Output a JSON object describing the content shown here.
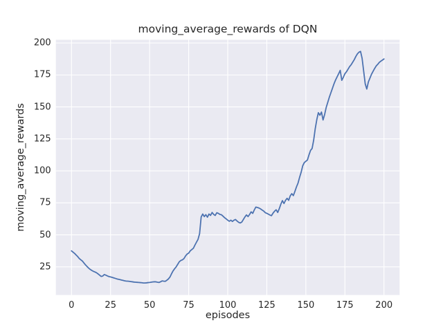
{
  "figure": {
    "title": "moving_average_rewards of DQN",
    "xlabel": "episodes",
    "ylabel": "moving_average_rewards"
  },
  "chart_data": {
    "type": "line",
    "title": "moving_average_rewards of DQN",
    "xlabel": "episodes",
    "ylabel": "moving_average_rewards",
    "xlim": [
      -10,
      210
    ],
    "ylim": [
      3,
      202.5
    ],
    "xticks": [
      0,
      25,
      50,
      75,
      100,
      125,
      150,
      175,
      200
    ],
    "yticks": [
      25,
      50,
      75,
      100,
      125,
      150,
      175,
      200
    ],
    "grid": true,
    "legend": null,
    "style": {
      "fig_bg": "#ffffff",
      "axes_bg": "#eaeaf2",
      "grid_color": "#ffffff",
      "text_color": "#262626",
      "line_color": "#4c72b0",
      "line_width": 1.8
    },
    "series": [
      {
        "name": "moving_average_rewards",
        "color": "#4c72b0",
        "x": [
          0,
          1,
          2,
          3,
          4,
          5,
          6,
          7,
          8,
          9,
          10,
          11,
          12,
          13,
          14,
          15,
          16,
          17,
          18,
          19,
          20,
          21,
          22,
          23,
          24,
          25,
          26,
          27,
          28,
          29,
          30,
          31,
          32,
          33,
          34,
          35,
          36,
          37,
          38,
          39,
          40,
          41,
          42,
          43,
          44,
          45,
          46,
          47,
          48,
          49,
          50,
          51,
          52,
          53,
          54,
          55,
          56,
          57,
          58,
          59,
          60,
          61,
          62,
          63,
          64,
          65,
          66,
          67,
          68,
          69,
          70,
          71,
          72,
          73,
          74,
          75,
          76,
          77,
          78,
          79,
          80,
          81,
          82,
          83,
          84,
          85,
          86,
          87,
          88,
          89,
          90,
          91,
          92,
          93,
          94,
          95,
          96,
          97,
          98,
          99,
          100,
          101,
          102,
          103,
          104,
          105,
          106,
          107,
          108,
          109,
          110,
          111,
          112,
          113,
          114,
          115,
          116,
          117,
          118,
          119,
          120,
          121,
          122,
          123,
          124,
          125,
          126,
          127,
          128,
          129,
          130,
          131,
          132,
          133,
          134,
          135,
          136,
          137,
          138,
          139,
          140,
          141,
          142,
          143,
          144,
          145,
          146,
          147,
          148,
          149,
          150,
          151,
          152,
          153,
          154,
          155,
          156,
          157,
          158,
          159,
          160,
          161,
          162,
          163,
          164,
          165,
          166,
          167,
          168,
          169,
          170,
          171,
          172,
          173,
          174,
          175,
          176,
          177,
          178,
          179,
          180,
          181,
          182,
          183,
          184,
          185,
          186,
          187,
          188,
          189,
          190,
          191,
          192,
          193,
          194,
          195,
          196,
          197,
          198,
          199,
          200
        ],
        "y": [
          37.5,
          36.5,
          35.5,
          34.2,
          33.0,
          31.5,
          30.5,
          29.5,
          28.0,
          26.5,
          25.2,
          24.0,
          23.0,
          22.2,
          21.5,
          21.0,
          20.4,
          19.5,
          18.5,
          17.5,
          17.8,
          19.0,
          18.5,
          17.9,
          17.4,
          17.1,
          16.8,
          16.4,
          16.0,
          15.6,
          15.3,
          15.0,
          14.7,
          14.4,
          14.1,
          13.9,
          13.8,
          13.7,
          13.5,
          13.3,
          13.1,
          13.0,
          12.9,
          12.8,
          12.7,
          12.6,
          12.4,
          12.4,
          12.5,
          12.7,
          12.8,
          13.0,
          13.2,
          13.3,
          13.3,
          13.0,
          12.8,
          13.3,
          14.0,
          13.8,
          13.7,
          14.5,
          15.5,
          17.0,
          19.5,
          21.8,
          23.5,
          25.0,
          27.0,
          29.0,
          30.0,
          30.5,
          31.5,
          33.5,
          35.0,
          35.7,
          37.5,
          38.5,
          39.5,
          42.0,
          44.3,
          46.5,
          51.0,
          64.0,
          66.3,
          64.3,
          65.8,
          63.8,
          66.3,
          65.2,
          67.5,
          66.0,
          65.2,
          67.3,
          66.8,
          66.0,
          65.7,
          64.6,
          63.4,
          62.5,
          61.5,
          60.6,
          61.5,
          60.5,
          61.5,
          62.0,
          60.8,
          59.8,
          59.3,
          60.0,
          62.0,
          64.0,
          65.6,
          64.3,
          66.0,
          68.0,
          66.8,
          69.5,
          71.7,
          71.4,
          71.0,
          70.3,
          69.4,
          68.6,
          67.4,
          66.8,
          66.2,
          65.5,
          65.0,
          67.0,
          68.5,
          69.6,
          67.5,
          70.5,
          74.0,
          76.8,
          74.5,
          77.0,
          78.6,
          77.0,
          80.5,
          82.2,
          80.7,
          84.0,
          87.5,
          90.5,
          95.0,
          99.0,
          104.0,
          106.5,
          107.5,
          108.5,
          112.5,
          116.0,
          117.5,
          124.0,
          133.0,
          140.0,
          145.5,
          143.5,
          146.0,
          139.8,
          144.0,
          149.5,
          153.5,
          157.5,
          161.0,
          164.5,
          168.0,
          171.0,
          173.5,
          176.0,
          178.6,
          170.8,
          173.2,
          176.0,
          177.5,
          179.5,
          181.5,
          183.0,
          185.0,
          187.0,
          189.5,
          191.5,
          192.8,
          193.4,
          188.0,
          178.0,
          168.0,
          164.0,
          169.5,
          172.5,
          175.5,
          177.8,
          180.0,
          182.0,
          183.3,
          184.8,
          185.8,
          186.6,
          187.5
        ]
      }
    ]
  }
}
